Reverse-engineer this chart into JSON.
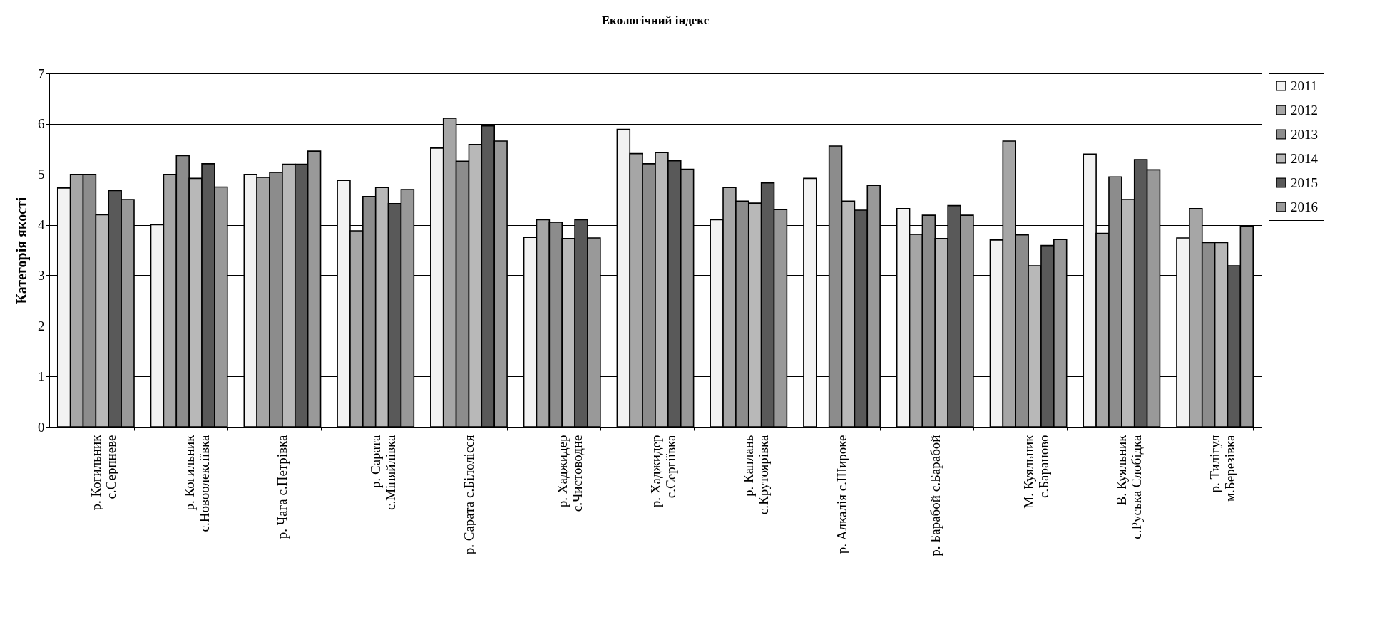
{
  "chart_data": {
    "type": "bar",
    "title": "Екологічний індекс",
    "ylabel": "Категорія якості",
    "categories": [
      "р. Когильник\nс.Серпневе",
      "р. Когильник\nс.Новоолексіївка",
      "р. Чага с.Петрівка",
      "р. Сарата\nс.Міняйлівка",
      "р. Сарата с.Білолісся",
      "р. Хаджидер\nс.Чистоводне",
      "р. Хаджидер\nс.Сергіївка",
      "р. Каплань\nс.Крутоярівка",
      "р. Алкалія с.Широке",
      "р. Барабой с.Барабой",
      "М. Куяльник\nс.Бараново",
      "В. Куяльник\nс.Руська Слобідка",
      "р. Тилігул\nм.Березівка"
    ],
    "series": [
      {
        "name": "2011",
        "color": "#f2f2f2",
        "values": [
          4.73,
          4.0,
          5.0,
          4.88,
          5.52,
          3.75,
          5.89,
          4.1,
          4.92,
          4.32,
          3.7,
          5.4,
          3.74
        ]
      },
      {
        "name": "2012",
        "color": "#a6a6a6",
        "values": [
          5.0,
          5.0,
          4.94,
          3.88,
          6.11,
          4.1,
          5.41,
          4.74,
          null,
          3.81,
          5.66,
          3.83,
          4.32
        ]
      },
      {
        "name": "2013",
        "color": "#8c8c8c",
        "values": [
          5.0,
          5.37,
          5.04,
          4.56,
          5.26,
          4.05,
          5.21,
          4.47,
          5.56,
          4.19,
          3.8,
          4.95,
          3.65
        ]
      },
      {
        "name": "2014",
        "color": "#b8b8b8",
        "values": [
          4.2,
          4.92,
          5.2,
          4.74,
          5.59,
          3.73,
          5.43,
          4.43,
          4.47,
          3.73,
          3.19,
          4.5,
          3.65
        ]
      },
      {
        "name": "2015",
        "color": "#595959",
        "values": [
          4.68,
          5.21,
          5.2,
          4.42,
          5.96,
          4.1,
          5.27,
          4.83,
          4.29,
          4.38,
          3.59,
          5.29,
          3.19
        ]
      },
      {
        "name": "2016",
        "color": "#999999",
        "values": [
          4.5,
          4.75,
          5.46,
          4.7,
          5.66,
          3.74,
          5.1,
          4.3,
          4.78,
          4.19,
          3.71,
          5.09,
          3.97
        ]
      }
    ],
    "ylim": [
      0,
      7
    ],
    "yticks": [
      0,
      1,
      2,
      3,
      4,
      5,
      6,
      7
    ],
    "grid": "y",
    "legend": "right"
  }
}
